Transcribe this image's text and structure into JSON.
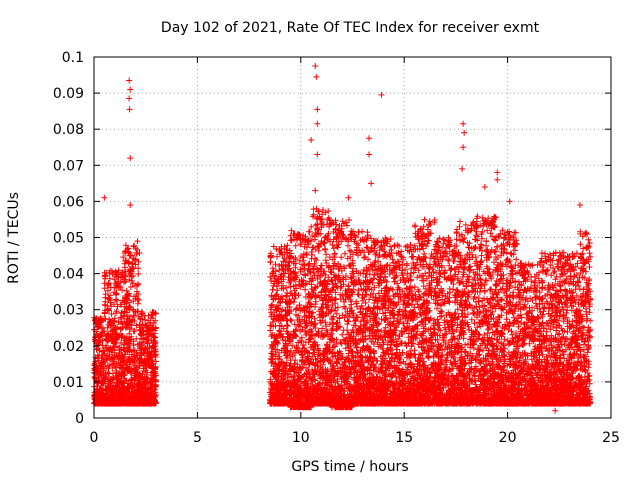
{
  "chart_data": {
    "type": "scatter",
    "title": "Day 102 of 2021, Rate Of TEC Index for receiver exmt",
    "xlabel": "GPS time / hours",
    "ylabel": "ROTI / TECUs",
    "xlim": [
      0,
      25
    ],
    "ylim": [
      0,
      0.1
    ],
    "x_ticks": [
      0,
      5,
      10,
      15,
      20,
      25
    ],
    "x_tick_labels": [
      "0",
      "5",
      "10",
      "15",
      "20",
      "25"
    ],
    "y_ticks": [
      0,
      0.01,
      0.02,
      0.03,
      0.04,
      0.05,
      0.06,
      0.07,
      0.08,
      0.09,
      0.1
    ],
    "y_tick_labels": [
      "0",
      "0.01",
      "0.02",
      "0.03",
      "0.04",
      "0.05",
      "0.06",
      "0.07",
      "0.08",
      "0.09",
      "0.1"
    ],
    "grid": true,
    "marker": "+",
    "series_color": "#ff0000",
    "data_gap_hours": [
      3.0,
      8.5
    ],
    "notable_points": [
      {
        "x": 0.5,
        "y": 0.061
      },
      {
        "x": 1.7,
        "y": 0.0935
      },
      {
        "x": 1.75,
        "y": 0.091
      },
      {
        "x": 1.7,
        "y": 0.0885
      },
      {
        "x": 1.72,
        "y": 0.0855
      },
      {
        "x": 1.75,
        "y": 0.072
      },
      {
        "x": 1.75,
        "y": 0.059
      },
      {
        "x": 2.1,
        "y": 0.049
      },
      {
        "x": 10.5,
        "y": 0.077
      },
      {
        "x": 10.7,
        "y": 0.0975
      },
      {
        "x": 10.75,
        "y": 0.0945
      },
      {
        "x": 10.8,
        "y": 0.0855
      },
      {
        "x": 10.8,
        "y": 0.0815
      },
      {
        "x": 10.8,
        "y": 0.073
      },
      {
        "x": 10.7,
        "y": 0.063
      },
      {
        "x": 12.3,
        "y": 0.061
      },
      {
        "x": 13.3,
        "y": 0.0775
      },
      {
        "x": 13.3,
        "y": 0.073
      },
      {
        "x": 13.4,
        "y": 0.065
      },
      {
        "x": 13.9,
        "y": 0.0895
      },
      {
        "x": 17.85,
        "y": 0.0815
      },
      {
        "x": 17.9,
        "y": 0.079
      },
      {
        "x": 17.85,
        "y": 0.075
      },
      {
        "x": 17.8,
        "y": 0.069
      },
      {
        "x": 19.5,
        "y": 0.068
      },
      {
        "x": 19.5,
        "y": 0.066
      },
      {
        "x": 18.9,
        "y": 0.064
      },
      {
        "x": 20.1,
        "y": 0.06
      },
      {
        "x": 23.5,
        "y": 0.059
      },
      {
        "x": 22.3,
        "y": 0.002
      }
    ],
    "bands": [
      {
        "x0": 0.0,
        "x1": 0.5,
        "ymin": 0.004,
        "ymax": 0.028
      },
      {
        "x0": 0.5,
        "x1": 1.4,
        "ymin": 0.004,
        "ymax": 0.041
      },
      {
        "x0": 1.4,
        "x1": 2.2,
        "ymin": 0.004,
        "ymax": 0.048
      },
      {
        "x0": 2.2,
        "x1": 3.0,
        "ymin": 0.004,
        "ymax": 0.03
      },
      {
        "x0": 8.5,
        "x1": 9.5,
        "ymin": 0.004,
        "ymax": 0.048
      },
      {
        "x0": 9.5,
        "x1": 10.5,
        "ymin": 0.003,
        "ymax": 0.052
      },
      {
        "x0": 10.5,
        "x1": 11.5,
        "ymin": 0.004,
        "ymax": 0.058
      },
      {
        "x0": 11.5,
        "x1": 12.5,
        "ymin": 0.003,
        "ymax": 0.055
      },
      {
        "x0": 12.5,
        "x1": 13.5,
        "ymin": 0.004,
        "ymax": 0.052
      },
      {
        "x0": 13.5,
        "x1": 14.5,
        "ymin": 0.004,
        "ymax": 0.05
      },
      {
        "x0": 14.5,
        "x1": 15.5,
        "ymin": 0.004,
        "ymax": 0.048
      },
      {
        "x0": 15.5,
        "x1": 16.5,
        "ymin": 0.004,
        "ymax": 0.055
      },
      {
        "x0": 16.5,
        "x1": 17.5,
        "ymin": 0.004,
        "ymax": 0.05
      },
      {
        "x0": 17.5,
        "x1": 18.5,
        "ymin": 0.004,
        "ymax": 0.055
      },
      {
        "x0": 18.5,
        "x1": 19.5,
        "ymin": 0.004,
        "ymax": 0.056
      },
      {
        "x0": 19.5,
        "x1": 20.5,
        "ymin": 0.004,
        "ymax": 0.052
      },
      {
        "x0": 20.5,
        "x1": 21.5,
        "ymin": 0.004,
        "ymax": 0.043
      },
      {
        "x0": 21.5,
        "x1": 22.5,
        "ymin": 0.004,
        "ymax": 0.046
      },
      {
        "x0": 22.5,
        "x1": 23.5,
        "ymin": 0.004,
        "ymax": 0.046
      },
      {
        "x0": 23.5,
        "x1": 24.0,
        "ymin": 0.004,
        "ymax": 0.052
      }
    ]
  }
}
